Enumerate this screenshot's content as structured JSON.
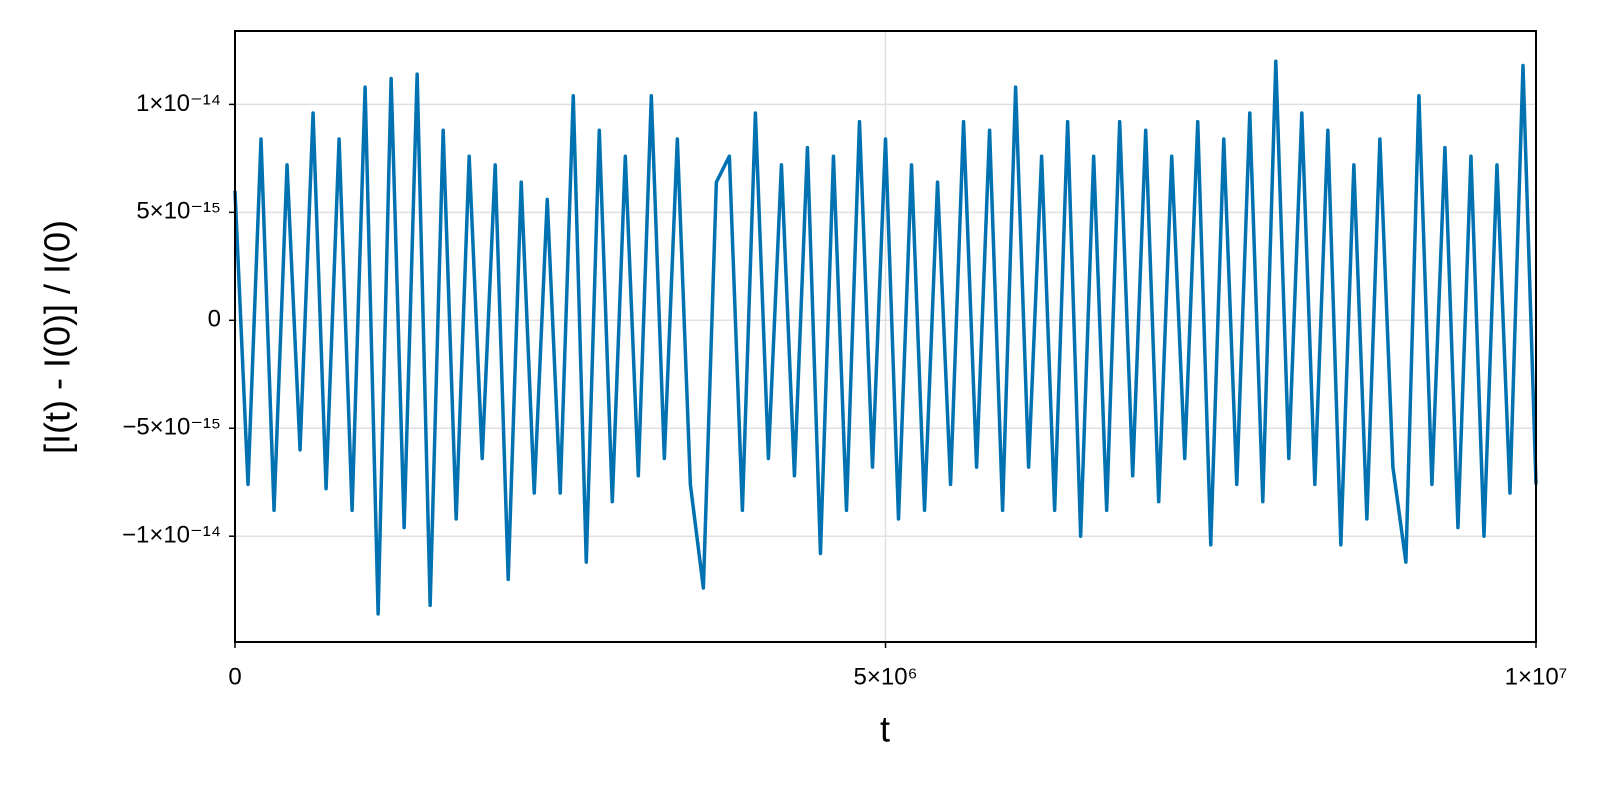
{
  "chart_data": {
    "type": "line",
    "xlabel": "t",
    "ylabel": "[I(t) - I(0)] / I(0)",
    "xlim": [
      0,
      10000000
    ],
    "ylim": [
      -1.49e-14,
      1.34e-14
    ],
    "xticks": [
      0,
      {
        "value": 5000000,
        "label": "5×10⁶"
      },
      {
        "value": 10000000,
        "label": "1×10⁷"
      }
    ],
    "yticks": [
      {
        "value": -1e-14,
        "label": "−1×10⁻¹⁴"
      },
      {
        "value": -5e-15,
        "label": "−5×10⁻¹⁵"
      },
      0,
      {
        "value": 5e-15,
        "label": "5×10⁻¹⁵"
      },
      {
        "value": 1e-14,
        "label": "1×10⁻¹⁴"
      }
    ],
    "grid": true,
    "x": [
      0,
      100000,
      200000,
      300000,
      400000,
      500000,
      600000,
      700000,
      800000,
      900000,
      1000000,
      1100000,
      1200000,
      1300000,
      1400000,
      1500000,
      1600000,
      1700000,
      1800000,
      1900000,
      2000000,
      2100000,
      2200000,
      2300000,
      2400000,
      2500000,
      2600000,
      2700000,
      2800000,
      2900000,
      3000000,
      3100000,
      3200000,
      3300000,
      3400000,
      3500000,
      3600000,
      3700000,
      3800000,
      3900000,
      4000000,
      4100000,
      4200000,
      4300000,
      4400000,
      4500000,
      4600000,
      4700000,
      4800000,
      4900000,
      5000000,
      5100000,
      5200000,
      5300000,
      5400000,
      5500000,
      5600000,
      5700000,
      5800000,
      5900000,
      6000000,
      6100000,
      6200000,
      6300000,
      6400000,
      6500000,
      6600000,
      6700000,
      6800000,
      6900000,
      7000000,
      7100000,
      7200000,
      7300000,
      7400000,
      7500000,
      7600000,
      7700000,
      7800000,
      7900000,
      8000000,
      8100000,
      8200000,
      8300000,
      8400000,
      8500000,
      8600000,
      8700000,
      8800000,
      8900000,
      9000000,
      9100000,
      9200000,
      9300000,
      9400000,
      9500000,
      9600000,
      9700000,
      9800000,
      9900000,
      10000000
    ],
    "series": [
      {
        "color": "#0072b2",
        "values": [
          6e-15,
          -7.6e-15,
          8.4e-15,
          -8.8e-15,
          7.2e-15,
          -6e-15,
          9.6e-15,
          -7.8e-15,
          8.4e-15,
          -8.8e-15,
          1.08e-14,
          -1.36e-14,
          1.12e-14,
          -9.6e-15,
          1.14e-14,
          -1.32e-14,
          8.8e-15,
          -9.2e-15,
          7.6e-15,
          -6.4e-15,
          7.2e-15,
          -1.2e-14,
          6.4e-15,
          -8e-15,
          5.6e-15,
          -8e-15,
          1.04e-14,
          -1.12e-14,
          8.8e-15,
          -8.4e-15,
          7.6e-15,
          -7.2e-15,
          1.04e-14,
          -6.4e-15,
          8.4e-15,
          -7.6e-15,
          -1.24e-14,
          6.4e-15,
          7.6e-15,
          -8.8e-15,
          9.6e-15,
          -6.4e-15,
          7.2e-15,
          -7.2e-15,
          8e-15,
          -1.08e-14,
          7.6e-15,
          -8.8e-15,
          9.2e-15,
          -6.8e-15,
          8.4e-15,
          -9.2e-15,
          7.2e-15,
          -8.8e-15,
          6.4e-15,
          -7.6e-15,
          9.2e-15,
          -6.8e-15,
          8.8e-15,
          -8.8e-15,
          1.08e-14,
          -6.8e-15,
          7.6e-15,
          -8.8e-15,
          9.2e-15,
          -1e-14,
          7.6e-15,
          -8.8e-15,
          9.2e-15,
          -7.2e-15,
          8.8e-15,
          -8.4e-15,
          7.6e-15,
          -6.4e-15,
          9.2e-15,
          -1.04e-14,
          8.4e-15,
          -7.6e-15,
          9.6e-15,
          -8.4e-15,
          1.2e-14,
          -6.4e-15,
          9.6e-15,
          -7.6e-15,
          8.8e-15,
          -1.04e-14,
          7.2e-15,
          -9.2e-15,
          8.4e-15,
          -6.8e-15,
          -1.12e-14,
          1.04e-14,
          -7.6e-15,
          8e-15,
          -9.6e-15,
          7.6e-15,
          -1e-14,
          7.2e-15,
          -8e-15,
          1.18e-14,
          -7.6e-15
        ]
      }
    ]
  }
}
